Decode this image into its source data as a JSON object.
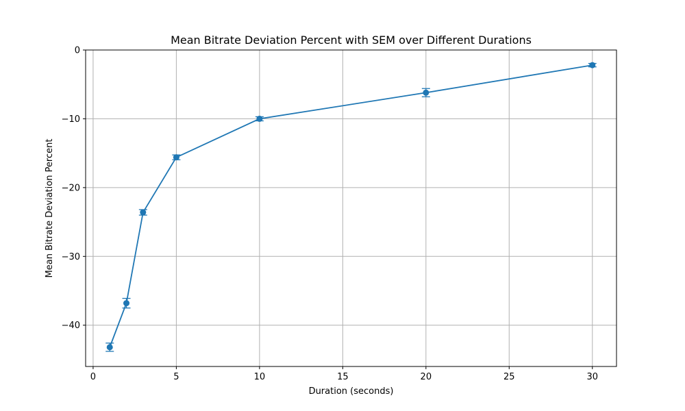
{
  "chart_data": {
    "type": "line",
    "title": "Mean Bitrate Deviation Percent with SEM over Different Durations",
    "xlabel": "Duration (seconds)",
    "ylabel": "Mean Bitrate Deviation Percent",
    "xlim": [
      -0.45,
      31.45
    ],
    "ylim": [
      -46.0,
      0
    ],
    "xticks": [
      0,
      5,
      10,
      15,
      20,
      25,
      30
    ],
    "yticks": [
      0,
      -10,
      -20,
      -30,
      -40
    ],
    "xtick_labels": [
      "0",
      "5",
      "10",
      "15",
      "20",
      "25",
      "30"
    ],
    "ytick_labels": [
      "0",
      "−10",
      "−20",
      "−30",
      "−40"
    ],
    "grid": true,
    "series": [
      {
        "x": [
          1,
          2,
          3,
          5,
          10,
          20,
          30
        ],
        "y": [
          -43.2,
          -36.8,
          -23.6,
          -15.6,
          -10.0,
          -6.2,
          -2.2
        ],
        "sem": [
          0.6,
          0.7,
          0.4,
          0.35,
          0.3,
          0.6,
          0.25
        ],
        "color": "#1f77b4",
        "marker": "circle"
      }
    ]
  }
}
